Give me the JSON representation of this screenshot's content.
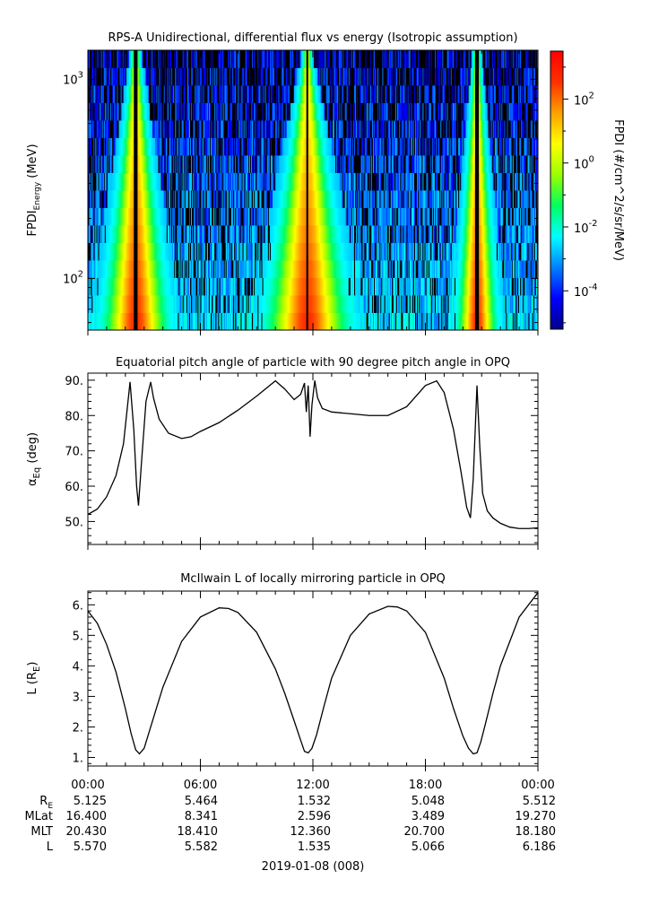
{
  "chart_data": [
    {
      "type": "heatmap",
      "title": "RPS-A Unidirectional, differential flux vs energy (Isotropic assumption)",
      "ylabel_main": "FPDI",
      "ylabel_sub": "Energy",
      "ylabel_unit": " (MeV)",
      "yscale": "log",
      "ylim": [
        55,
        1400
      ],
      "y_ticks": [
        {
          "base": "10",
          "exp": "2",
          "value": 100
        },
        {
          "base": "10",
          "exp": "3",
          "value": 1000
        }
      ],
      "x_range_hours": [
        0,
        24
      ],
      "energy_bins": 16,
      "time_bins": 480,
      "colorbar": {
        "label": "FPDI (#/cm^2/s/sr/MeV)",
        "scale": "log",
        "range_exp": [
          -5.2,
          3.5
        ],
        "colors": [
          "#00008b",
          "#0000ff",
          "#0080ff",
          "#00ffff",
          "#00ff60",
          "#9aff00",
          "#ffff00",
          "#ffa000",
          "#ff3000",
          "#ff0000"
        ],
        "ticks": [
          {
            "base": "10",
            "exp": "2",
            "value": 2
          },
          {
            "base": "10",
            "exp": "0",
            "value": 0
          },
          {
            "base": "10",
            "exp": "-2",
            "value": -2
          },
          {
            "base": "10",
            "exp": "-4",
            "value": -4
          }
        ]
      },
      "belt_passes": [
        {
          "t_center": 2.55,
          "width_low": 0.9,
          "width_high": 0.12,
          "hole_half": 0.09
        },
        {
          "t_center": 11.7,
          "width_low": 1.15,
          "width_high": 0.12,
          "hole_half": 0.05
        },
        {
          "t_center": 20.75,
          "width_low": 0.55,
          "width_high": 0.1,
          "hole_half": 0.09
        }
      ]
    },
    {
      "type": "line",
      "title": "Equatorial pitch angle of particle with 90 degree pitch angle in OPQ",
      "ylabel": "α",
      "ylabel_sub": "Eq",
      "ylabel_unit": " (deg)",
      "ylim": [
        43.5,
        92
      ],
      "y_ticks": [
        50,
        60,
        70,
        80,
        90
      ],
      "y_tick_labels": [
        "50.",
        "60.",
        "70.",
        "80.",
        "90."
      ],
      "x": [
        0,
        0.5,
        1,
        1.5,
        1.9,
        2.1,
        2.25,
        2.45,
        2.6,
        2.7,
        2.85,
        3.1,
        3.35,
        3.5,
        3.8,
        4.3,
        5,
        5.5,
        6,
        7,
        8,
        9,
        10,
        10.5,
        11,
        11.35,
        11.55,
        11.65,
        11.75,
        11.85,
        11.95,
        12.1,
        12.25,
        12.5,
        13,
        14,
        15,
        16,
        17,
        18,
        18.6,
        19,
        19.5,
        19.9,
        20.2,
        20.4,
        20.55,
        20.75,
        20.9,
        21.05,
        21.3,
        21.6,
        22,
        22.5,
        23,
        23.5,
        24
      ],
      "y": [
        52,
        53.5,
        57,
        63,
        72,
        82,
        89.5,
        76,
        60,
        54.5,
        66,
        84,
        89.5,
        85,
        79,
        75,
        73.5,
        74,
        75.5,
        78,
        81.5,
        85.5,
        89.8,
        87.5,
        84.5,
        86,
        89.2,
        81,
        88.5,
        74,
        83,
        89.9,
        85,
        82,
        81,
        80.5,
        80,
        80,
        82.5,
        88.5,
        89.8,
        86.5,
        76,
        64,
        54,
        51,
        62,
        88.5,
        71,
        58,
        53,
        51,
        49.5,
        48.4,
        48,
        48,
        48.2
      ]
    },
    {
      "type": "line",
      "title": "McIlwain L of locally mirroring particle in OPQ",
      "ylabel": "L (R",
      "ylabel_sub": "E",
      "ylabel_unit": ")",
      "ylim": [
        0.72,
        6.45
      ],
      "y_ticks": [
        1,
        2,
        3,
        4,
        5,
        6
      ],
      "y_tick_labels": [
        "1.",
        "2.",
        "3.",
        "4.",
        "5.",
        "6."
      ],
      "x": [
        0,
        0.5,
        1,
        1.5,
        2,
        2.3,
        2.55,
        2.75,
        3,
        3.5,
        4,
        5,
        6,
        7,
        7.5,
        8,
        9,
        10,
        10.5,
        11,
        11.3,
        11.55,
        11.75,
        11.95,
        12.2,
        12.6,
        13,
        14,
        15,
        16,
        16.5,
        17,
        18,
        19,
        19.5,
        20,
        20.3,
        20.55,
        20.75,
        20.95,
        21.2,
        21.6,
        22,
        23,
        24
      ],
      "y": [
        5.8,
        5.4,
        4.7,
        3.8,
        2.6,
        1.8,
        1.25,
        1.12,
        1.3,
        2.3,
        3.3,
        4.8,
        5.6,
        5.9,
        5.88,
        5.75,
        5.1,
        3.9,
        3.1,
        2.2,
        1.65,
        1.2,
        1.15,
        1.3,
        1.75,
        2.7,
        3.6,
        5.0,
        5.7,
        5.95,
        5.93,
        5.8,
        5.1,
        3.6,
        2.6,
        1.7,
        1.3,
        1.12,
        1.15,
        1.5,
        2.1,
        3.1,
        4.0,
        5.6,
        6.4
      ]
    }
  ],
  "time_axis": {
    "tick_labels": [
      "00:00",
      "06:00",
      "12:00",
      "18:00",
      "00:00"
    ],
    "tick_hours": [
      0,
      6,
      12,
      18,
      24
    ],
    "minor_step_hours": 1
  },
  "ephemeris": {
    "rows": [
      {
        "label": "R",
        "sub": "E",
        "values": [
          "5.125",
          "5.464",
          "1.532",
          "5.048",
          "5.512"
        ]
      },
      {
        "label": "MLat",
        "sub": "",
        "values": [
          "16.400",
          "8.341",
          "2.596",
          "3.489",
          "19.270"
        ]
      },
      {
        "label": "MLT",
        "sub": "",
        "values": [
          "20.430",
          "18.410",
          "12.360",
          "20.700",
          "18.180"
        ]
      },
      {
        "label": "L",
        "sub": "",
        "values": [
          "5.570",
          "5.582",
          "1.535",
          "5.066",
          "6.186"
        ]
      }
    ]
  },
  "date_label": "2019-01-08 (008)"
}
